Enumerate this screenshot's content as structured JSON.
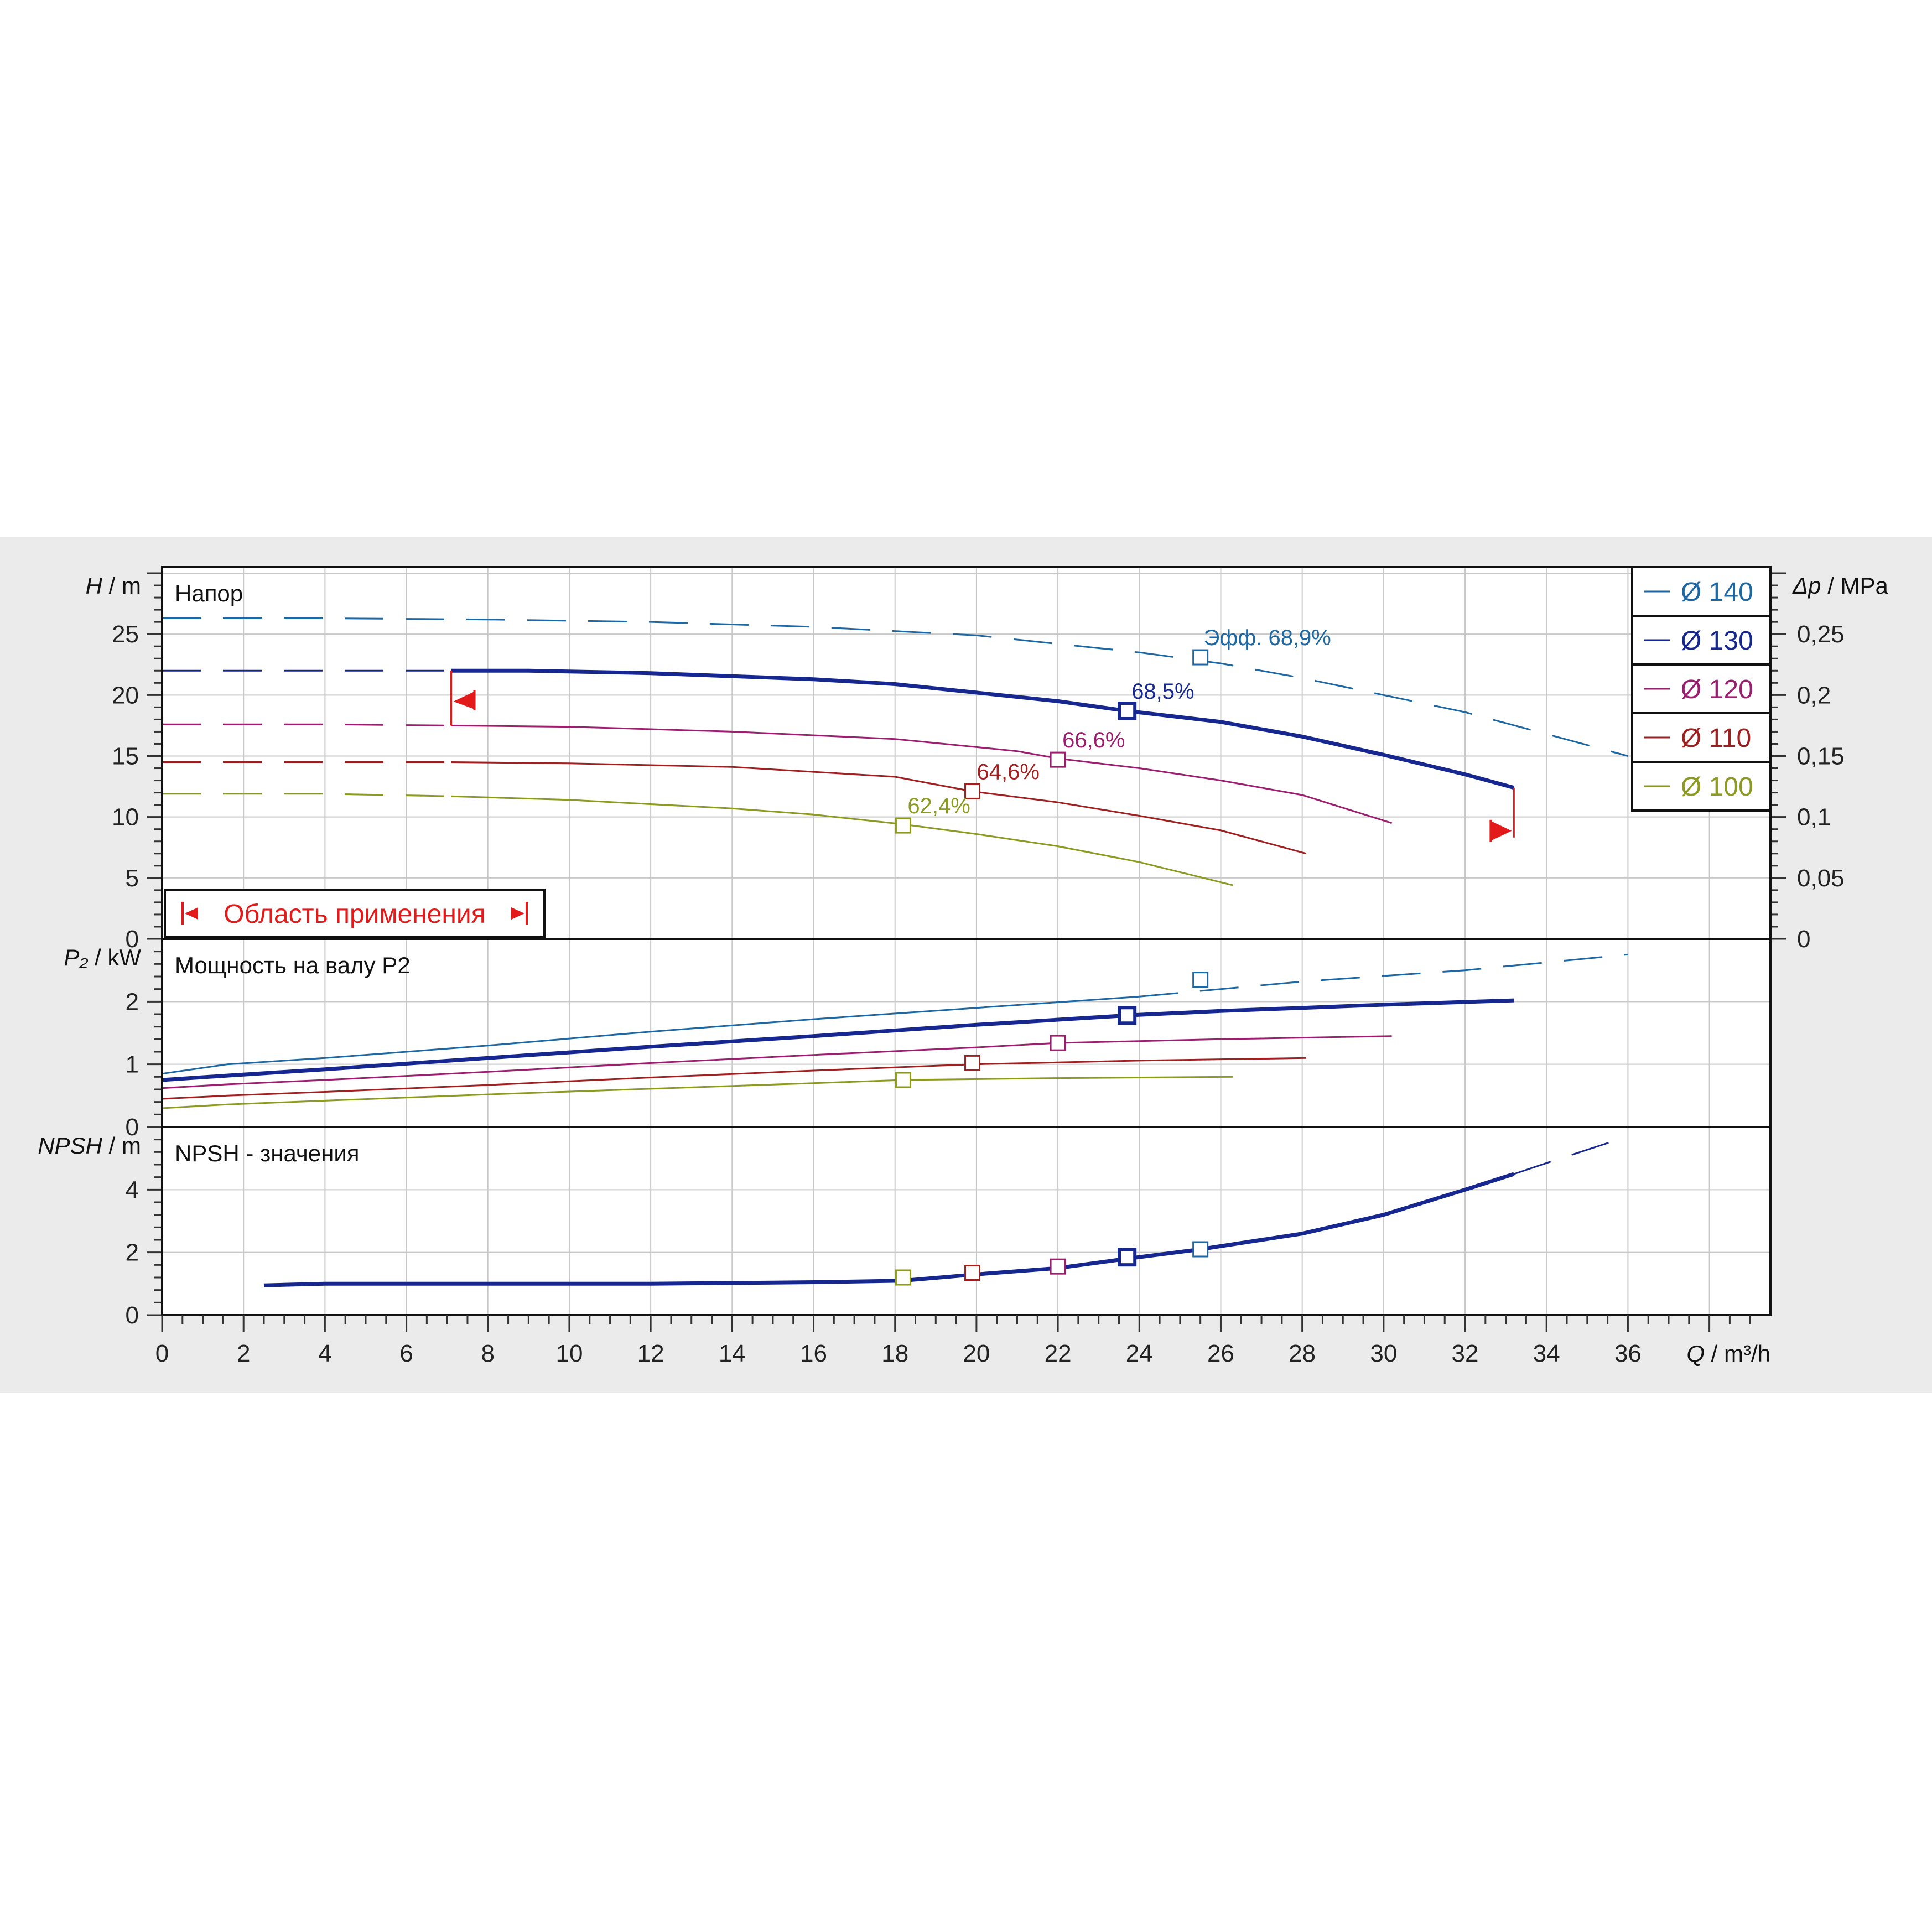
{
  "chart_data": {
    "type": "line",
    "x_axis": {
      "label_symbol": "Q",
      "label_unit": "/ m³/h",
      "range": [
        0,
        39.5
      ],
      "ticks": [
        0,
        2,
        4,
        6,
        8,
        10,
        12,
        14,
        16,
        18,
        20,
        22,
        24,
        26,
        28,
        30,
        32,
        34,
        36
      ]
    },
    "legend": {
      "position": "top-right",
      "entries": [
        {
          "label": "Ø 140",
          "color": "#1d67a3"
        },
        {
          "label": "Ø 130",
          "color": "#16288f"
        },
        {
          "label": "Ø 120",
          "color": "#9b1f6e"
        },
        {
          "label": "Ø 110",
          "color": "#9e2020"
        },
        {
          "label": "Ø 100",
          "color": "#8c9a22"
        }
      ]
    },
    "application_range": {
      "label": "Область применения",
      "q_min": 7.1,
      "q_max": 33.2,
      "color": "#e21a1a"
    },
    "panels": [
      {
        "id": "head",
        "title": "Напор",
        "y_symbol": "H",
        "y_unit": "/ m",
        "y_range": [
          0,
          30.5
        ],
        "y_ticks": [
          0,
          5,
          10,
          15,
          20,
          25
        ],
        "secondary_axis": {
          "symbol": "Δp",
          "unit": "/ MPa",
          "ticks": [
            "0",
            "0,05",
            "0,1",
            "0,15",
            "0,2",
            "0,25"
          ],
          "tick_values": [
            0,
            0.05,
            0.1,
            0.15,
            0.2,
            0.25
          ]
        },
        "series": [
          {
            "name": "Ø 140",
            "dashed_to": 36,
            "points": [
              [
                0,
                26.3
              ],
              [
                4,
                26.3
              ],
              [
                8,
                26.2
              ],
              [
                12,
                26
              ],
              [
                16,
                25.6
              ],
              [
                20,
                24.9
              ],
              [
                24,
                23.5
              ],
              [
                26,
                22.6
              ],
              [
                28,
                21.4
              ],
              [
                30,
                20
              ],
              [
                32,
                18.6
              ],
              [
                34,
                16.8
              ],
              [
                36,
                15
              ]
            ],
            "bep": {
              "q": 25.5,
              "h": 23.1,
              "label": "Эфф.   68,9%"
            }
          },
          {
            "name": "Ø 130",
            "solid_from": 7.1,
            "solid_to": 33.2,
            "points": [
              [
                0,
                22
              ],
              [
                4,
                22
              ],
              [
                7.1,
                22
              ],
              [
                9,
                22
              ],
              [
                12,
                21.8
              ],
              [
                16,
                21.3
              ],
              [
                18,
                20.9
              ],
              [
                20,
                20.2
              ],
              [
                22,
                19.5
              ],
              [
                23.7,
                18.7
              ],
              [
                26,
                17.8
              ],
              [
                28,
                16.6
              ],
              [
                30,
                15.1
              ],
              [
                32,
                13.5
              ],
              [
                33.2,
                12.4
              ]
            ],
            "bep": {
              "q": 23.7,
              "h": 18.7,
              "label": "68,5%"
            }
          },
          {
            "name": "Ø 120",
            "solid_from": 7.1,
            "solid_to": 30.2,
            "points": [
              [
                0,
                17.6
              ],
              [
                4,
                17.6
              ],
              [
                7.1,
                17.5
              ],
              [
                10,
                17.4
              ],
              [
                14,
                17
              ],
              [
                18,
                16.4
              ],
              [
                21,
                15.4
              ],
              [
                22,
                14.8
              ],
              [
                24,
                14
              ],
              [
                26,
                13
              ],
              [
                28,
                11.8
              ],
              [
                30.2,
                9.5
              ]
            ],
            "bep": {
              "q": 22.0,
              "h": 14.7,
              "label": "66,6%"
            }
          },
          {
            "name": "Ø 110",
            "solid_from": 7.1,
            "solid_to": 28.1,
            "points": [
              [
                0,
                14.5
              ],
              [
                4,
                14.5
              ],
              [
                7.1,
                14.5
              ],
              [
                10,
                14.4
              ],
              [
                14,
                14.1
              ],
              [
                18,
                13.3
              ],
              [
                19.9,
                12.1
              ],
              [
                22,
                11.2
              ],
              [
                24,
                10.1
              ],
              [
                26,
                8.9
              ],
              [
                28.1,
                7
              ]
            ],
            "bep": {
              "q": 19.9,
              "h": 12.1,
              "label": "64,6%"
            }
          },
          {
            "name": "Ø 100",
            "solid_from": 7.1,
            "solid_to": 26.3,
            "points": [
              [
                0,
                11.9
              ],
              [
                4,
                11.9
              ],
              [
                7.1,
                11.7
              ],
              [
                10,
                11.4
              ],
              [
                14,
                10.7
              ],
              [
                16,
                10.2
              ],
              [
                18.2,
                9.4
              ],
              [
                20,
                8.6
              ],
              [
                22,
                7.6
              ],
              [
                24,
                6.3
              ],
              [
                26.3,
                4.4
              ]
            ],
            "bep": {
              "q": 18.2,
              "h": 9.3,
              "label": "62,4%"
            }
          }
        ]
      },
      {
        "id": "power",
        "title": "Мощность на валу P2",
        "y_symbol": "P₂",
        "y_unit": "/ kW",
        "y_range": [
          0,
          3.0
        ],
        "y_ticks": [
          0,
          1,
          2
        ],
        "series": [
          {
            "name": "Ø 140",
            "dashed_from": 24,
            "points": [
              [
                0,
                0.85
              ],
              [
                1.6,
                1.0
              ],
              [
                4,
                1.1
              ],
              [
                8,
                1.3
              ],
              [
                12,
                1.52
              ],
              [
                16,
                1.72
              ],
              [
                20,
                1.9
              ],
              [
                24,
                2.08
              ],
              [
                26,
                2.2
              ],
              [
                28,
                2.32
              ],
              [
                32,
                2.5
              ],
              [
                36,
                2.75
              ]
            ],
            "bep": {
              "q": 25.5,
              "p": 2.35
            }
          },
          {
            "name": "Ø 130",
            "points": [
              [
                0,
                0.75
              ],
              [
                1.6,
                0.82
              ],
              [
                4,
                0.92
              ],
              [
                8,
                1.1
              ],
              [
                12,
                1.28
              ],
              [
                16,
                1.45
              ],
              [
                20,
                1.63
              ],
              [
                23.7,
                1.78
              ],
              [
                26,
                1.85
              ],
              [
                28,
                1.9
              ],
              [
                30,
                1.95
              ],
              [
                33.2,
                2.02
              ]
            ],
            "bep": {
              "q": 23.7,
              "p": 1.78
            }
          },
          {
            "name": "Ø 120",
            "points": [
              [
                0,
                0.62
              ],
              [
                1.6,
                0.68
              ],
              [
                4,
                0.75
              ],
              [
                8,
                0.88
              ],
              [
                12,
                1.02
              ],
              [
                16,
                1.15
              ],
              [
                20,
                1.27
              ],
              [
                22,
                1.34
              ],
              [
                26,
                1.4
              ],
              [
                30.2,
                1.45
              ]
            ],
            "bep": {
              "q": 22.0,
              "p": 1.34
            }
          },
          {
            "name": "Ø 110",
            "points": [
              [
                0,
                0.45
              ],
              [
                1.6,
                0.5
              ],
              [
                4,
                0.56
              ],
              [
                8,
                0.67
              ],
              [
                12,
                0.79
              ],
              [
                16,
                0.9
              ],
              [
                19.9,
                1.0
              ],
              [
                24,
                1.06
              ],
              [
                28.1,
                1.1
              ]
            ],
            "bep": {
              "q": 19.9,
              "p": 1.02
            }
          },
          {
            "name": "Ø 100",
            "points": [
              [
                0,
                0.3
              ],
              [
                1.6,
                0.36
              ],
              [
                4,
                0.42
              ],
              [
                8,
                0.52
              ],
              [
                12,
                0.61
              ],
              [
                16,
                0.7
              ],
              [
                18.2,
                0.75
              ],
              [
                22,
                0.78
              ],
              [
                26.3,
                0.8
              ]
            ],
            "bep": {
              "q": 18.2,
              "p": 0.75
            }
          }
        ]
      },
      {
        "id": "npsh",
        "title": "NPSH - значения",
        "y_symbol": "NPSH",
        "y_unit": "/ m",
        "y_range": [
          0,
          6.0
        ],
        "y_ticks": [
          0,
          2,
          4
        ],
        "series": [
          {
            "name": "Ø 130",
            "dashed_from": 33.2,
            "points": [
              [
                2.5,
                0.95
              ],
              [
                4,
                1.0
              ],
              [
                8,
                1.0
              ],
              [
                12,
                1.0
              ],
              [
                16,
                1.05
              ],
              [
                18.2,
                1.1
              ],
              [
                20,
                1.3
              ],
              [
                22,
                1.5
              ],
              [
                23.7,
                1.8
              ],
              [
                25.5,
                2.1
              ],
              [
                28,
                2.6
              ],
              [
                30,
                3.2
              ],
              [
                32,
                4.0
              ],
              [
                33.2,
                4.5
              ],
              [
                34,
                4.85
              ],
              [
                36,
                5.7
              ]
            ]
          }
        ],
        "markers": [
          {
            "name": "Ø 140",
            "q": 25.5,
            "v": 2.1
          },
          {
            "name": "Ø 130",
            "q": 23.7,
            "v": 1.85
          },
          {
            "name": "Ø 120",
            "q": 22.0,
            "v": 1.55
          },
          {
            "name": "Ø 110",
            "q": 19.9,
            "v": 1.35
          },
          {
            "name": "Ø 100",
            "q": 18.2,
            "v": 1.2
          }
        ]
      }
    ]
  }
}
